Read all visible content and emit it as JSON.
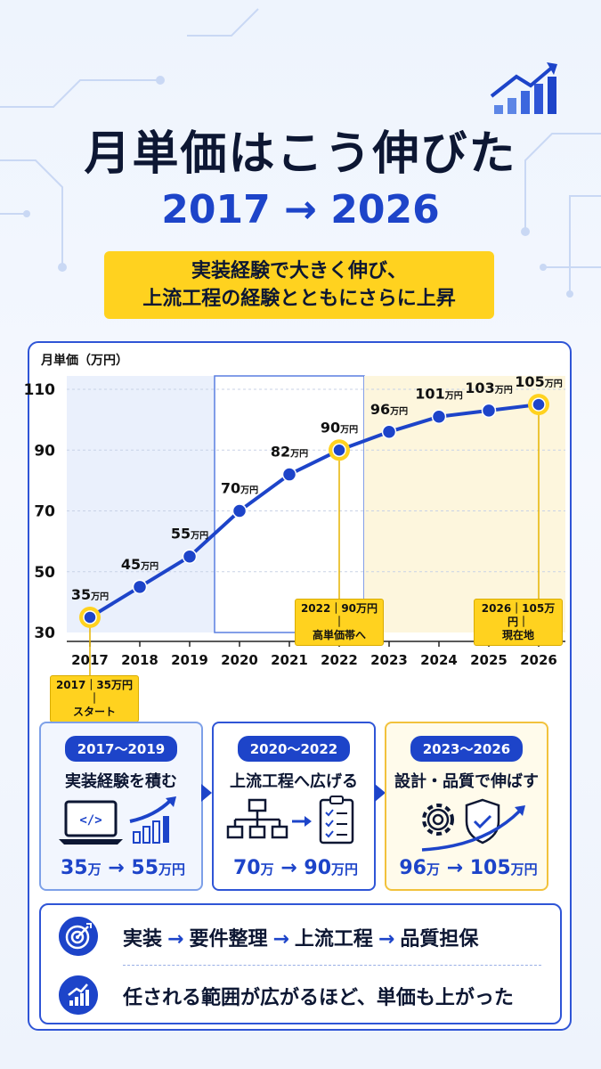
{
  "header": {
    "title": "月単価はこう伸びた",
    "subtitle": "2017 → 2026",
    "banner_line1": "実装経験で大きく伸び、",
    "banner_line2": "上流工程の経験とともにさらに上昇"
  },
  "chart_data": {
    "type": "line",
    "ylabel": "月単価（万円）",
    "ylim": [
      30,
      110
    ],
    "yticks": [
      30,
      50,
      70,
      90,
      110
    ],
    "x": [
      "2017",
      "2018",
      "2019",
      "2020",
      "2021",
      "2022",
      "2023",
      "2024",
      "2025",
      "2026"
    ],
    "series": [
      {
        "values": [
          35,
          45,
          55,
          70,
          82,
          90,
          96,
          101,
          103,
          105
        ]
      }
    ],
    "point_unit": "万円",
    "highlighted_points": [
      0,
      5,
      9
    ],
    "phases": [
      {
        "from": "2017",
        "to": "2019",
        "color": "#eaf0fc"
      },
      {
        "from": "2020",
        "to": "2022",
        "color": "#ffffff"
      },
      {
        "from": "2023",
        "to": "2026",
        "color": "#fdf6dd"
      }
    ],
    "annotations": [
      {
        "x": "2017",
        "line1": "2017｜35万円｜",
        "line2": "スタート"
      },
      {
        "x": "2022",
        "line1": "2022｜90万円｜",
        "line2": "高単価帯へ"
      },
      {
        "x": "2026",
        "line1": "2026｜105万円｜",
        "line2": "現在地"
      }
    ],
    "colors": {
      "line": "#1d44c9",
      "highlight": "#ffd21f"
    }
  },
  "phases": [
    {
      "period": "2017～2019",
      "title": "実装経験を積む",
      "from": "35",
      "from_unit": "万",
      "to": "55",
      "to_unit": "万円"
    },
    {
      "period": "2020～2022",
      "title": "上流工程へ広げる",
      "from": "70",
      "from_unit": "万",
      "to": "90",
      "to_unit": "万円"
    },
    {
      "period": "2023～2026",
      "title": "設計・品質で伸ばす",
      "from": "96",
      "from_unit": "万",
      "to": "105",
      "to_unit": "万円"
    }
  ],
  "bottom": {
    "flow": [
      "実装",
      "要件整理",
      "上流工程",
      "品質担保"
    ],
    "arrow": "→",
    "message": "任される範囲が広がるほど、単価も上がった",
    "icons": [
      "target-icon",
      "growth-chart-icon"
    ]
  },
  "icons": [
    "laptop-code-icon",
    "bar-growth-icon",
    "org-chart-icon",
    "checklist-icon",
    "gear-icon",
    "shield-check-icon",
    "trend-arrow-icon"
  ]
}
